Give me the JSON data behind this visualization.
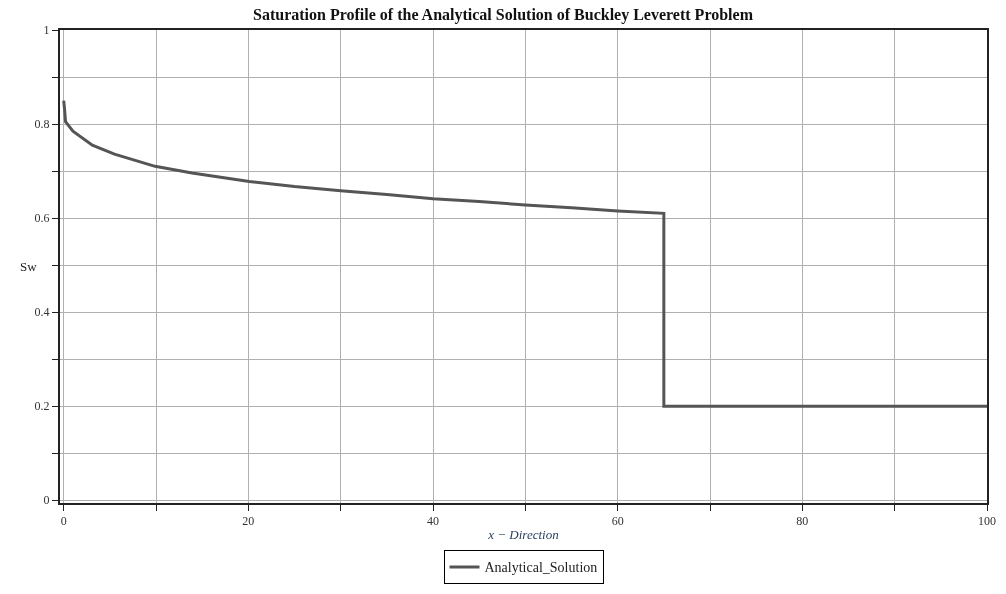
{
  "chart_data": {
    "type": "line",
    "title": "Saturation Profile of the Analytical Solution of Buckley Leverett Problem",
    "xlabel": "x − Direction",
    "ylabel": "Sw",
    "series": [
      {
        "name": "Analytical_Solution",
        "color": "#555555",
        "x": [
          0,
          0.1,
          0.2,
          1,
          3.1,
          5.5,
          9.9,
          13.9,
          20.1,
          25,
          30,
          35,
          40,
          45,
          50,
          55,
          60,
          65,
          65,
          100
        ],
        "values": [
          0.85,
          0.83,
          0.805,
          0.785,
          0.755,
          0.736,
          0.71,
          0.696,
          0.678,
          0.667,
          0.658,
          0.65,
          0.641,
          0.635,
          0.628,
          0.622,
          0.615,
          0.61,
          0.2,
          0.2
        ]
      }
    ],
    "xlim": [
      -0.4,
      100
    ],
    "ylim": [
      -0.006,
      1
    ],
    "xticks": [
      0,
      {
        "value": 10,
        "label": null
      },
      20,
      {
        "value": 30,
        "label": null
      },
      40,
      {
        "value": 50,
        "label": null
      },
      60,
      {
        "value": 70,
        "label": null
      },
      80,
      {
        "value": 90,
        "label": null
      },
      100
    ],
    "yticks": [
      0,
      {
        "value": 0.1,
        "label": null
      },
      0.2,
      {
        "value": 0.3,
        "label": null
      },
      0.4,
      {
        "value": 0.5,
        "label": null
      },
      0.6,
      {
        "value": 0.7,
        "label": null
      },
      0.8,
      {
        "value": 0.9,
        "label": null
      },
      1
    ],
    "grid": true,
    "legend": "bottom",
    "marker": "none",
    "line_style": "solid"
  }
}
